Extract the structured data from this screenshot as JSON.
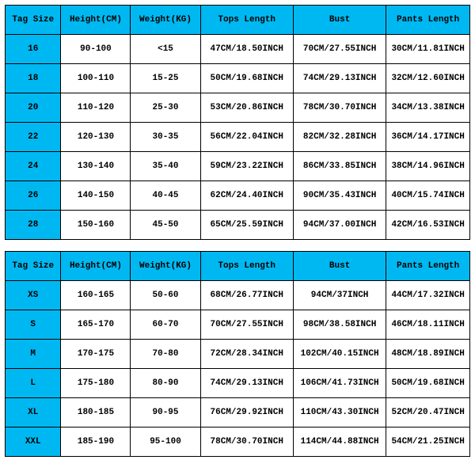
{
  "header_bg": "#00b8f1",
  "cell_bg": "#ffffff",
  "border_color": "#000000",
  "font_family": "Courier New, monospace",
  "header_fontsize": 11,
  "cell_fontsize": 11,
  "columns": [
    {
      "label": "Tag Size",
      "width_pct": 12
    },
    {
      "label": "Height(CM)",
      "width_pct": 15
    },
    {
      "label": "Weight(KG)",
      "width_pct": 15
    },
    {
      "label": "Tops Length",
      "width_pct": 20
    },
    {
      "label": "Bust",
      "width_pct": 20
    },
    {
      "label": "Pants Length",
      "width_pct": 18
    }
  ],
  "table1": {
    "rows": [
      {
        "size": "16",
        "height": "90-100",
        "weight": "<15",
        "tops": "47CM/18.50INCH",
        "bust": "70CM/27.55INCH",
        "pants": "30CM/11.81INCH"
      },
      {
        "size": "18",
        "height": "100-110",
        "weight": "15-25",
        "tops": "50CM/19.68INCH",
        "bust": "74CM/29.13INCH",
        "pants": "32CM/12.60INCH"
      },
      {
        "size": "20",
        "height": "110-120",
        "weight": "25-30",
        "tops": "53CM/20.86INCH",
        "bust": "78CM/30.70INCH",
        "pants": "34CM/13.38INCH"
      },
      {
        "size": "22",
        "height": "120-130",
        "weight": "30-35",
        "tops": "56CM/22.04INCH",
        "bust": "82CM/32.28INCH",
        "pants": "36CM/14.17INCH"
      },
      {
        "size": "24",
        "height": "130-140",
        "weight": "35-40",
        "tops": "59CM/23.22INCH",
        "bust": "86CM/33.85INCH",
        "pants": "38CM/14.96INCH"
      },
      {
        "size": "26",
        "height": "140-150",
        "weight": "40-45",
        "tops": "62CM/24.40INCH",
        "bust": "90CM/35.43INCH",
        "pants": "40CM/15.74INCH"
      },
      {
        "size": "28",
        "height": "150-160",
        "weight": "45-50",
        "tops": "65CM/25.59INCH",
        "bust": "94CM/37.00INCH",
        "pants": "42CM/16.53INCH"
      }
    ]
  },
  "table2": {
    "rows": [
      {
        "size": "XS",
        "height": "160-165",
        "weight": "50-60",
        "tops": "68CM/26.77INCH",
        "bust": "94CM/37INCH",
        "pants": "44CM/17.32INCH"
      },
      {
        "size": "S",
        "height": "165-170",
        "weight": "60-70",
        "tops": "70CM/27.55INCH",
        "bust": "98CM/38.58INCH",
        "pants": "46CM/18.11INCH"
      },
      {
        "size": "M",
        "height": "170-175",
        "weight": "70-80",
        "tops": "72CM/28.34INCH",
        "bust": "102CM/40.15INCH",
        "pants": "48CM/18.89INCH"
      },
      {
        "size": "L",
        "height": "175-180",
        "weight": "80-90",
        "tops": "74CM/29.13INCH",
        "bust": "106CM/41.73INCH",
        "pants": "50CM/19.68INCH"
      },
      {
        "size": "XL",
        "height": "180-185",
        "weight": "90-95",
        "tops": "76CM/29.92INCH",
        "bust": "110CM/43.30INCH",
        "pants": "52CM/20.47INCH"
      },
      {
        "size": "XXL",
        "height": "185-190",
        "weight": "95-100",
        "tops": "78CM/30.70INCH",
        "bust": "114CM/44.88INCH",
        "pants": "54CM/21.25INCH"
      }
    ]
  }
}
